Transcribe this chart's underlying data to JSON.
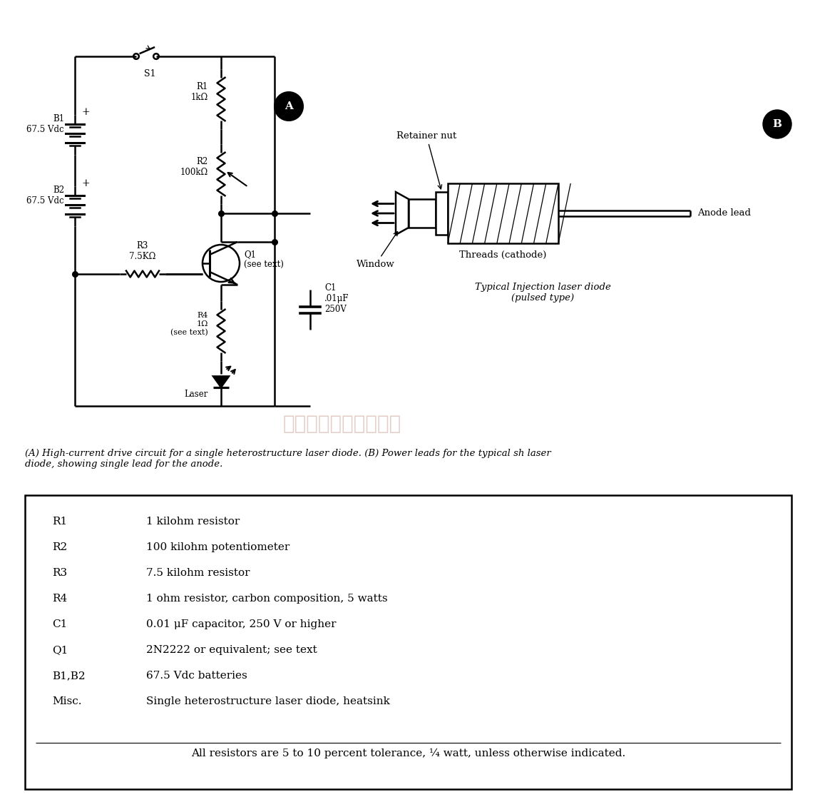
{
  "bg_color": "#ffffff",
  "caption": "(A) High-current drive circuit for a single heterostructure laser diode. (B) Power leads for the typical sh laser\ndiode, showing single lead for the anode.",
  "table_entries": [
    [
      "R1",
      "1 kilohm resistor"
    ],
    [
      "R2",
      "100 kilohm potentiometer"
    ],
    [
      "R3",
      "7.5 kilohm resistor"
    ],
    [
      "R4",
      "1 ohm resistor, carbon composition, 5 watts"
    ],
    [
      "C1",
      "0.01 μF capacitor, 250 V or higher"
    ],
    [
      "Q1",
      "2N2222 or equivalent; see text"
    ],
    [
      "B1,B2",
      "67.5 Vdc batteries"
    ],
    [
      "Misc.",
      "Single heterostructure laser diode, heatsink"
    ]
  ],
  "table_footer": "All resistors are 5 to 10 percent tolerance, ¼ watt, unless otherwise indicated.",
  "watermark": "杭州将睿科技有限公司",
  "label_A": "A",
  "label_B": "B"
}
